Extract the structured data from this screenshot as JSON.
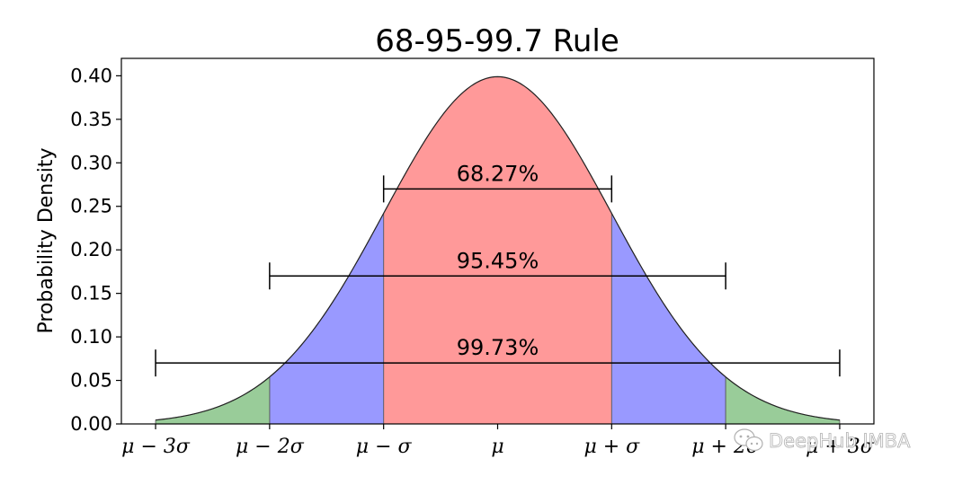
{
  "chart_data": {
    "type": "area",
    "title": "68-95-99.7 Rule",
    "xlabel": "",
    "ylabel": "Probability Density",
    "xlim": [
      -3.3,
      3.3
    ],
    "ylim": [
      0,
      0.42
    ],
    "x_range": [
      -3,
      3
    ],
    "x_ticks": [
      {
        "value": -3,
        "label": "μ − 3σ"
      },
      {
        "value": -2,
        "label": "μ − 2σ"
      },
      {
        "value": -1,
        "label": "μ − σ"
      },
      {
        "value": 0,
        "label": "μ"
      },
      {
        "value": 1,
        "label": "μ + σ"
      },
      {
        "value": 2,
        "label": "μ + 2σ"
      },
      {
        "value": 3,
        "label": "μ + 3σ"
      }
    ],
    "y_ticks": [
      {
        "value": 0.0,
        "label": "0.00"
      },
      {
        "value": 0.05,
        "label": "0.05"
      },
      {
        "value": 0.1,
        "label": "0.10"
      },
      {
        "value": 0.15,
        "label": "0.15"
      },
      {
        "value": 0.2,
        "label": "0.20"
      },
      {
        "value": 0.25,
        "label": "0.25"
      },
      {
        "value": 0.3,
        "label": "0.30"
      },
      {
        "value": 0.35,
        "label": "0.35"
      },
      {
        "value": 0.4,
        "label": "0.40"
      }
    ],
    "grid": false,
    "regions": [
      {
        "from": -1,
        "to": 1,
        "color": "#ff9999"
      },
      {
        "from": -2,
        "to": -1,
        "color": "#9999ff"
      },
      {
        "from": 1,
        "to": 2,
        "color": "#9999ff"
      },
      {
        "from": -3,
        "to": -2,
        "color": "#99cc99"
      },
      {
        "from": 2,
        "to": 3,
        "color": "#99cc99"
      }
    ],
    "intervals": [
      {
        "label": "68.27%",
        "from": -1,
        "to": 1,
        "y": 0.27
      },
      {
        "label": "95.45%",
        "from": -2,
        "to": 2,
        "y": 0.17
      },
      {
        "label": "99.73%",
        "from": -3,
        "to": 3,
        "y": 0.07
      }
    ]
  },
  "watermark": {
    "text": "DeepHub IMBA",
    "icon": "wechat-icon"
  }
}
